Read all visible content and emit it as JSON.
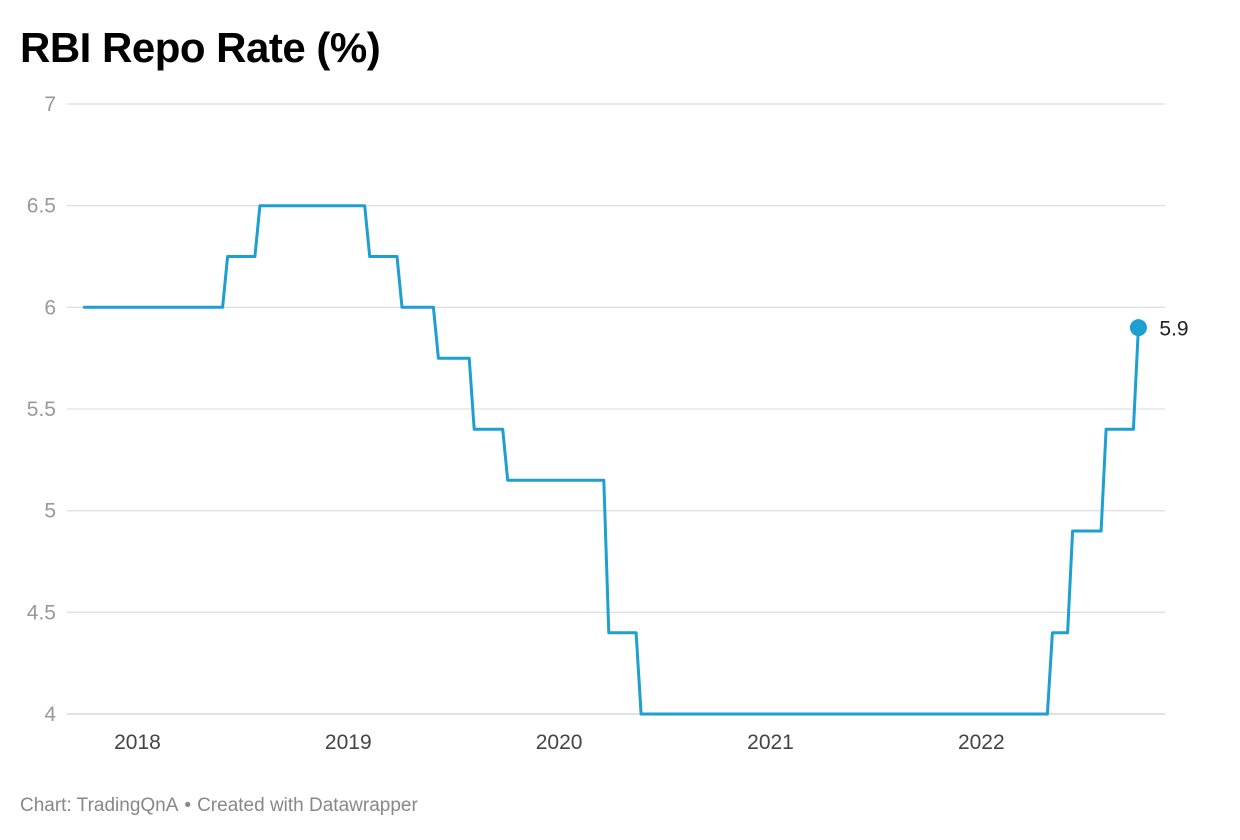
{
  "header": {
    "title": "RBI Repo Rate (%)"
  },
  "footer": {
    "source": "Chart: TradingQnA",
    "separator": "•",
    "credit": "Created with Datawrapper"
  },
  "colors": {
    "line": "#1d9fd2",
    "grid": "#e0e0e0",
    "axis_text": "#999999"
  },
  "chart_data": {
    "type": "line",
    "step": true,
    "title": "RBI Repo Rate (%)",
    "xlabel": "",
    "ylabel": "",
    "xlim": [
      "2017-09-01",
      "2022-11-15"
    ],
    "ylim": [
      4,
      7
    ],
    "yticks": [
      7,
      6.5,
      6,
      5.5,
      5,
      4.5,
      4
    ],
    "ytick_labels": [
      "7",
      "6.5",
      "6",
      "5.5",
      "5",
      "4.5",
      "4"
    ],
    "xticks": [
      "2018-01-01",
      "2019-01-01",
      "2020-01-01",
      "2021-01-01",
      "2022-01-01"
    ],
    "xtick_labels": [
      "2018",
      "2019",
      "2020",
      "2021",
      "2022"
    ],
    "grid": true,
    "series": [
      {
        "dates": [
          "2017-10-01",
          "2018-06-06",
          "2018-08-01",
          "2019-02-07",
          "2019-04-04",
          "2019-06-06",
          "2019-08-07",
          "2019-10-04",
          "2020-03-27",
          "2020-05-22",
          "2022-05-04",
          "2022-06-08",
          "2022-08-05",
          "2022-09-30"
        ],
        "values": [
          6.0,
          6.25,
          6.5,
          6.25,
          6.0,
          5.75,
          5.4,
          5.15,
          4.4,
          4.0,
          4.4,
          4.9,
          5.4,
          5.9
        ]
      }
    ],
    "end_label": "5.9"
  }
}
